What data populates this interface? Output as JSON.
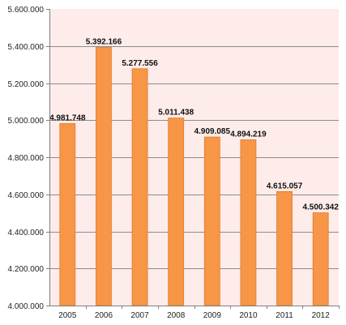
{
  "chart_data": {
    "type": "bar",
    "title": "",
    "xlabel": "",
    "ylabel": "",
    "categories": [
      "2005",
      "2006",
      "2007",
      "2008",
      "2009",
      "2010",
      "2011",
      "2012"
    ],
    "values": [
      4981748,
      5392166,
      5277556,
      5011438,
      4909085,
      4894219,
      4615057,
      4500342
    ],
    "data_labels": [
      "4.981.748",
      "5.392.166",
      "5.277.556",
      "5.011.438",
      "4.909.085",
      "4.894.219",
      "4.615.057",
      "4.500.342"
    ],
    "ylim": [
      4000000,
      5600000
    ],
    "yticks": [
      4000000,
      4200000,
      4400000,
      4600000,
      4800000,
      5000000,
      5200000,
      5400000,
      5600000
    ],
    "ytick_labels": [
      "4.000.000",
      "4.200.000",
      "4.400.000",
      "4.600.000",
      "4.800.000",
      "5.000.000",
      "5.200.000",
      "5.400.000",
      "5.600.000"
    ],
    "grid": true,
    "legend": "none",
    "colors": {
      "bar_fill": "#f79646",
      "bar_stroke": "#e07b2a",
      "plot_background": "#fdecea",
      "gridline": "#8c8c8c",
      "axis": "#7f7f7f"
    }
  }
}
